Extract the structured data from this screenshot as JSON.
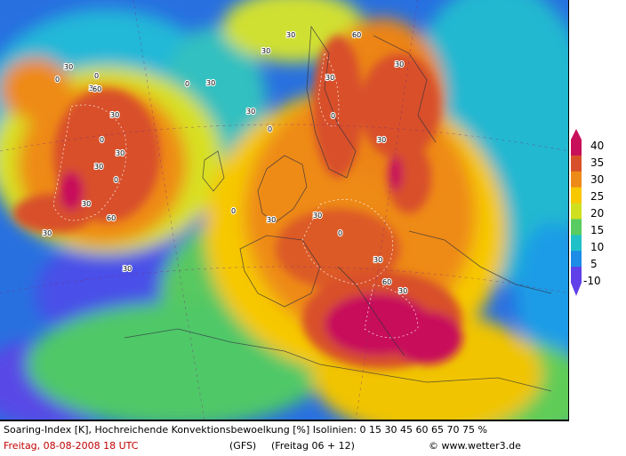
{
  "caption": {
    "line1": "Soaring-Index [K], Hochreichende Konvektionsbewoelkung [%] Isolinien: 0 15 30 45 60 65 70 75 %",
    "date": "Freitag, 08-08-2008  18 UTC",
    "model": "(GFS)",
    "run": "(Freitag 06 + 12)",
    "copyright": "© www.wetter3.de"
  },
  "legend": {
    "labels": [
      "40",
      "35",
      "30",
      "25",
      "20",
      "15",
      "10",
      "5",
      "-10"
    ],
    "colors": [
      "#c8105a",
      "#d8502a",
      "#ee8a18",
      "#f8c800",
      "#d0e020",
      "#58cc60",
      "#20c0c8",
      "#1c8ce6",
      "#6040e8"
    ]
  },
  "contour_labels": [
    "0",
    "30",
    "0",
    "30",
    "60",
    "30",
    "0",
    "30",
    "30",
    "0",
    "30",
    "60",
    "30",
    "30",
    "0",
    "30",
    "30",
    "0",
    "30",
    "30",
    "60",
    "30",
    "0",
    "30",
    "30",
    "30",
    "0",
    "30",
    "60",
    "30",
    "0",
    "30"
  ]
}
